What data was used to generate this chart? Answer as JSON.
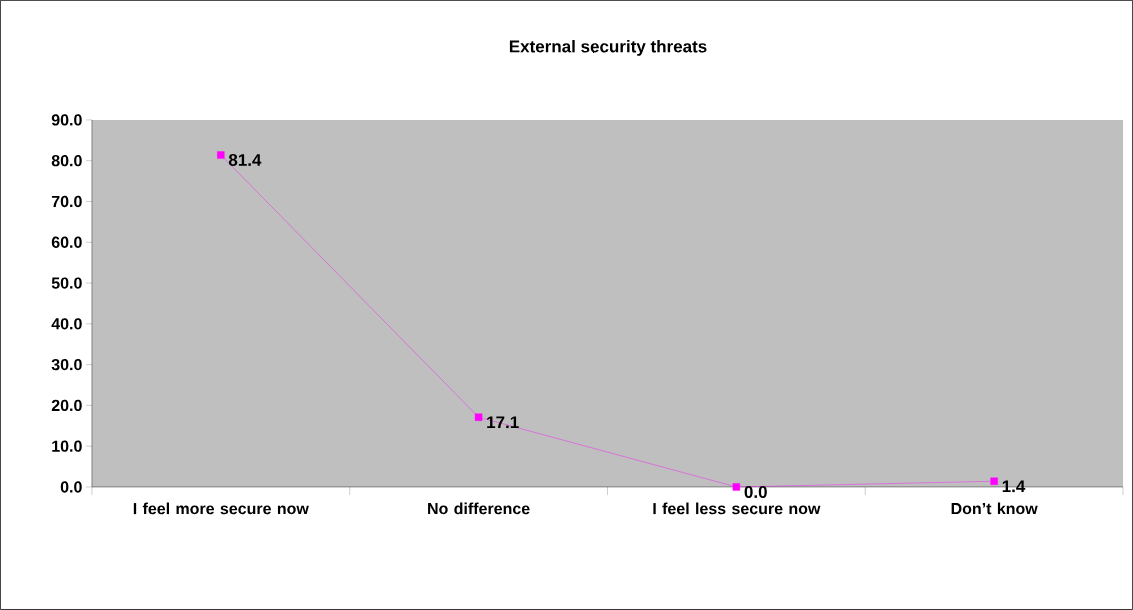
{
  "chart_data": {
    "type": "line",
    "title": "External security threats",
    "categories": [
      "I feel more secure now",
      "No difference",
      "I feel less secure now",
      "Don’t know"
    ],
    "values": [
      81.4,
      17.1,
      0.0,
      1.4
    ],
    "value_labels": [
      "81.4",
      "17.1",
      "0.0",
      "1.4"
    ],
    "color": "#ff00ff",
    "marker": "square",
    "line_style": "solid",
    "ylim": [
      0,
      90
    ],
    "yticks": [
      {
        "value": 0,
        "label": "0.0"
      },
      {
        "value": 10,
        "label": "10.0"
      },
      {
        "value": 20,
        "label": "20.0"
      },
      {
        "value": 30,
        "label": "30.0"
      },
      {
        "value": 40,
        "label": "40.0"
      },
      {
        "value": 50,
        "label": "50.0"
      },
      {
        "value": 60,
        "label": "60.0"
      },
      {
        "value": 70,
        "label": "70.0"
      },
      {
        "value": 80,
        "label": "80.0"
      },
      {
        "value": 90,
        "label": "90.0"
      }
    ]
  }
}
